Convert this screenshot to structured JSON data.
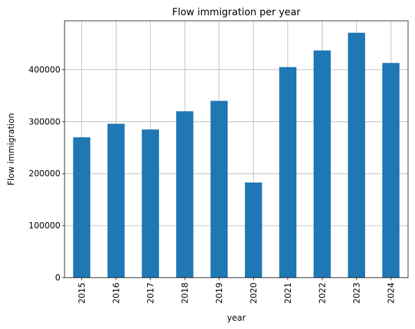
{
  "chart_data": {
    "type": "bar",
    "title": "Flow immigration per year",
    "xlabel": "year",
    "ylabel": "Flow immigration",
    "categories": [
      "2015",
      "2016",
      "2017",
      "2018",
      "2019",
      "2020",
      "2021",
      "2022",
      "2023",
      "2024"
    ],
    "values": [
      270000,
      296000,
      285000,
      320000,
      340000,
      183000,
      405000,
      437000,
      471000,
      413000
    ],
    "yticks": [
      0,
      100000,
      200000,
      300000,
      400000
    ],
    "ytick_labels": [
      "0",
      "100000",
      "200000",
      "300000",
      "400000"
    ],
    "ylim": [
      0,
      494000
    ],
    "grid": true,
    "bar_color": "#1f77b4"
  }
}
